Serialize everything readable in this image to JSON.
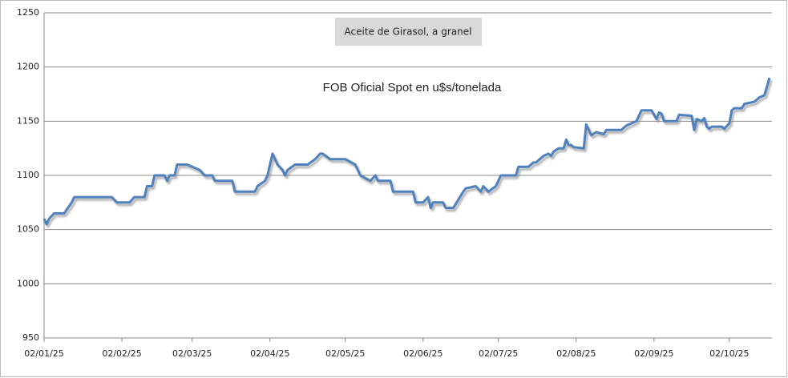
{
  "chart_data": {
    "type": "line",
    "title": "Aceite de Girasol, a granel",
    "subtitle": "FOB Oficial Spot en u$s/tonelada",
    "x": [
      "2025-01-02",
      "2025-01-03",
      "2025-01-04",
      "2025-01-06",
      "2025-01-10",
      "2025-01-13",
      "2025-01-14",
      "2025-01-29",
      "2025-01-31",
      "2025-02-05",
      "2025-02-07",
      "2025-02-11",
      "2025-02-12",
      "2025-02-14",
      "2025-02-15",
      "2025-02-19",
      "2025-02-20",
      "2025-02-21",
      "2025-02-23",
      "2025-02-24",
      "2025-02-28",
      "2025-03-05",
      "2025-03-07",
      "2025-03-10",
      "2025-03-11",
      "2025-03-18",
      "2025-03-19",
      "2025-03-27",
      "2025-03-28",
      "2025-03-31",
      "2025-04-01",
      "2025-04-03",
      "2025-04-05",
      "2025-04-07",
      "2025-04-08",
      "2025-04-09",
      "2025-04-12",
      "2025-04-17",
      "2025-04-20",
      "2025-04-22",
      "2025-04-23",
      "2025-04-26",
      "2025-05-02",
      "2025-05-06",
      "2025-05-08",
      "2025-05-12",
      "2025-05-14",
      "2025-05-15",
      "2025-05-20",
      "2025-05-21",
      "2025-05-29",
      "2025-05-30",
      "2025-06-02",
      "2025-06-04",
      "2025-06-05",
      "2025-06-06",
      "2025-06-10",
      "2025-06-11",
      "2025-06-14",
      "2025-06-18",
      "2025-06-19",
      "2025-06-23",
      "2025-06-25",
      "2025-06-26",
      "2025-06-28",
      "2025-07-01",
      "2025-07-03",
      "2025-07-09",
      "2025-07-10",
      "2025-07-14",
      "2025-07-16",
      "2025-07-17",
      "2025-07-20",
      "2025-07-22",
      "2025-07-23",
      "2025-07-24",
      "2025-07-26",
      "2025-07-28",
      "2025-07-29",
      "2025-07-30",
      "2025-07-31",
      "2025-08-01",
      "2025-08-05",
      "2025-08-06",
      "2025-08-08",
      "2025-08-10",
      "2025-08-13",
      "2025-08-14",
      "2025-08-20",
      "2025-08-22",
      "2025-08-26",
      "2025-08-28",
      "2025-09-01",
      "2025-09-03",
      "2025-09-04",
      "2025-09-05",
      "2025-09-06",
      "2025-09-11",
      "2025-09-12",
      "2025-09-17",
      "2025-09-18",
      "2025-09-19",
      "2025-09-21",
      "2025-09-22",
      "2025-09-23",
      "2025-09-24",
      "2025-09-25",
      "2025-09-29",
      "2025-09-30",
      "2025-10-02",
      "2025-10-03",
      "2025-10-04",
      "2025-10-07",
      "2025-10-08",
      "2025-10-12",
      "2025-10-14",
      "2025-10-16",
      "2025-10-18"
    ],
    "series": [
      {
        "color": "#4f81bd",
        "values": [
          1060,
          1055,
          1060,
          1065,
          1065,
          1075,
          1080,
          1080,
          1075,
          1075,
          1080,
          1080,
          1090,
          1090,
          1100,
          1100,
          1095,
          1100,
          1100,
          1110,
          1110,
          1105,
          1100,
          1100,
          1095,
          1095,
          1085,
          1085,
          1090,
          1095,
          1100,
          1120,
          1110,
          1105,
          1100,
          1105,
          1110,
          1110,
          1115,
          1120,
          1120,
          1115,
          1115,
          1110,
          1100,
          1095,
          1100,
          1095,
          1095,
          1085,
          1085,
          1075,
          1075,
          1080,
          1070,
          1075,
          1075,
          1070,
          1070,
          1085,
          1088,
          1090,
          1085,
          1090,
          1085,
          1090,
          1100,
          1100,
          1108,
          1108,
          1112,
          1112,
          1118,
          1120,
          1118,
          1122,
          1125,
          1125,
          1133,
          1128,
          1128,
          1126,
          1125,
          1147,
          1137,
          1140,
          1138,
          1142,
          1142,
          1146,
          1150,
          1160,
          1160,
          1152,
          1158,
          1157,
          1150,
          1150,
          1156,
          1155,
          1142,
          1152,
          1150,
          1153,
          1145,
          1143,
          1145,
          1145,
          1143,
          1148,
          1160,
          1162,
          1162,
          1166,
          1168,
          1172,
          1174,
          1190
        ]
      }
    ],
    "xlim": [
      "2025-01-02",
      "2025-10-19"
    ],
    "xticks": [
      {
        "value": "2025-01-02",
        "label": "02/01/25"
      },
      {
        "value": "2025-02-02",
        "label": "02/02/25"
      },
      {
        "value": "2025-03-02",
        "label": "02/03/25"
      },
      {
        "value": "2025-04-02",
        "label": "02/04/25"
      },
      {
        "value": "2025-05-02",
        "label": "02/05/25"
      },
      {
        "value": "2025-06-02",
        "label": "02/06/25"
      },
      {
        "value": "2025-07-02",
        "label": "02/07/25"
      },
      {
        "value": "2025-08-02",
        "label": "02/08/25"
      },
      {
        "value": "2025-09-02",
        "label": "02/09/25"
      },
      {
        "value": "2025-10-02",
        "label": "02/10/25"
      }
    ],
    "ylim": [
      950,
      1250
    ],
    "yticks": [
      950,
      1000,
      1050,
      1100,
      1150,
      1200,
      1250
    ],
    "grid": true
  }
}
